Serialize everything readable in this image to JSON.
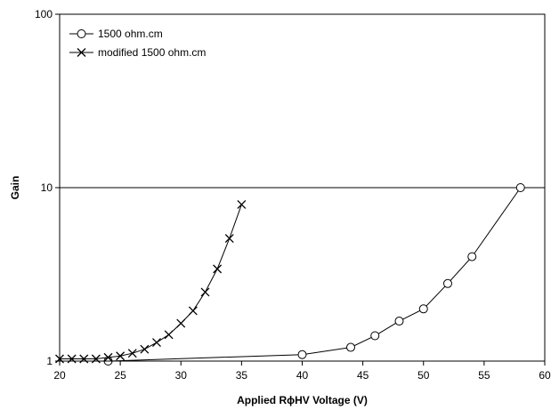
{
  "chart_data": {
    "type": "line",
    "xlabel": "Applied RɸHV Voltage (V)",
    "ylabel": "Gain",
    "xlim": [
      20,
      60
    ],
    "ylim": [
      1,
      100
    ],
    "yscale": "log",
    "x_ticks": [
      "20",
      "25",
      "30",
      "35",
      "40",
      "45",
      "50",
      "55",
      "60"
    ],
    "y_ticks": [
      "1",
      "10",
      "100"
    ],
    "gridlines": {
      "y": [
        10
      ]
    },
    "legend": {
      "position": "top-left"
    },
    "series": [
      {
        "name": "1500 ohm.cm",
        "marker": "circle",
        "color": "#000000",
        "points": [
          [
            24,
            1.0
          ],
          [
            40,
            1.09
          ],
          [
            44,
            1.2
          ],
          [
            46,
            1.4
          ],
          [
            48,
            1.7
          ],
          [
            50,
            2.0
          ],
          [
            52,
            2.8
          ],
          [
            54,
            4.0
          ],
          [
            58,
            10.0
          ]
        ]
      },
      {
        "name": "modified 1500 ohm.cm",
        "marker": "x",
        "color": "#000000",
        "points": [
          [
            20,
            1.03
          ],
          [
            21,
            1.03
          ],
          [
            22,
            1.03
          ],
          [
            23,
            1.03
          ],
          [
            24,
            1.05
          ],
          [
            25,
            1.07
          ],
          [
            26,
            1.11
          ],
          [
            27,
            1.17
          ],
          [
            28,
            1.28
          ],
          [
            29,
            1.42
          ],
          [
            30,
            1.65
          ],
          [
            31,
            1.95
          ],
          [
            32,
            2.5
          ],
          [
            33,
            3.4
          ],
          [
            34,
            5.1
          ],
          [
            35,
            8.0
          ]
        ]
      }
    ]
  }
}
